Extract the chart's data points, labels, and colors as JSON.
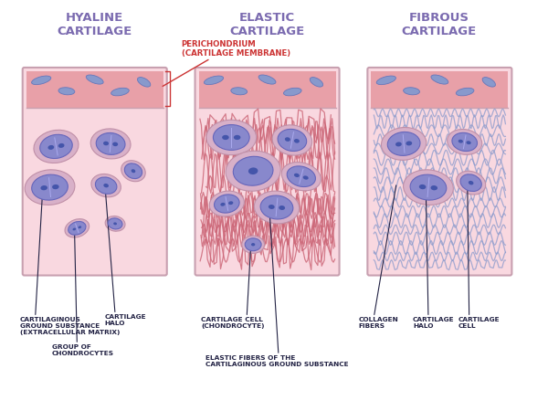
{
  "bg_color": "#ffffff",
  "title_color": "#7b6bb0",
  "perichondrium_color": "#e8a0a8",
  "cartilage_bg": "#f9d8e0",
  "perichondrium_label_color": "#cc3333",
  "panel_titles": [
    "HYALINE\nCARTILAGE",
    "ELASTIC\nCARTILAGE",
    "FIBROUS\nCARTILAGE"
  ],
  "panel_border_color": "#c8a0b0",
  "cell_halo_color": "#d8b0c8",
  "cell_body_color": "#8888cc",
  "cell_nucleus_color": "#4455aa",
  "elastic_fiber_color": "#cc6677",
  "collagen_fiber_color": "#8899cc",
  "annotation_color": "#222244",
  "arrow_color": "#222244",
  "perich_small_cell_color": "#8899cc",
  "perich_small_cell_edge": "#6677bb"
}
